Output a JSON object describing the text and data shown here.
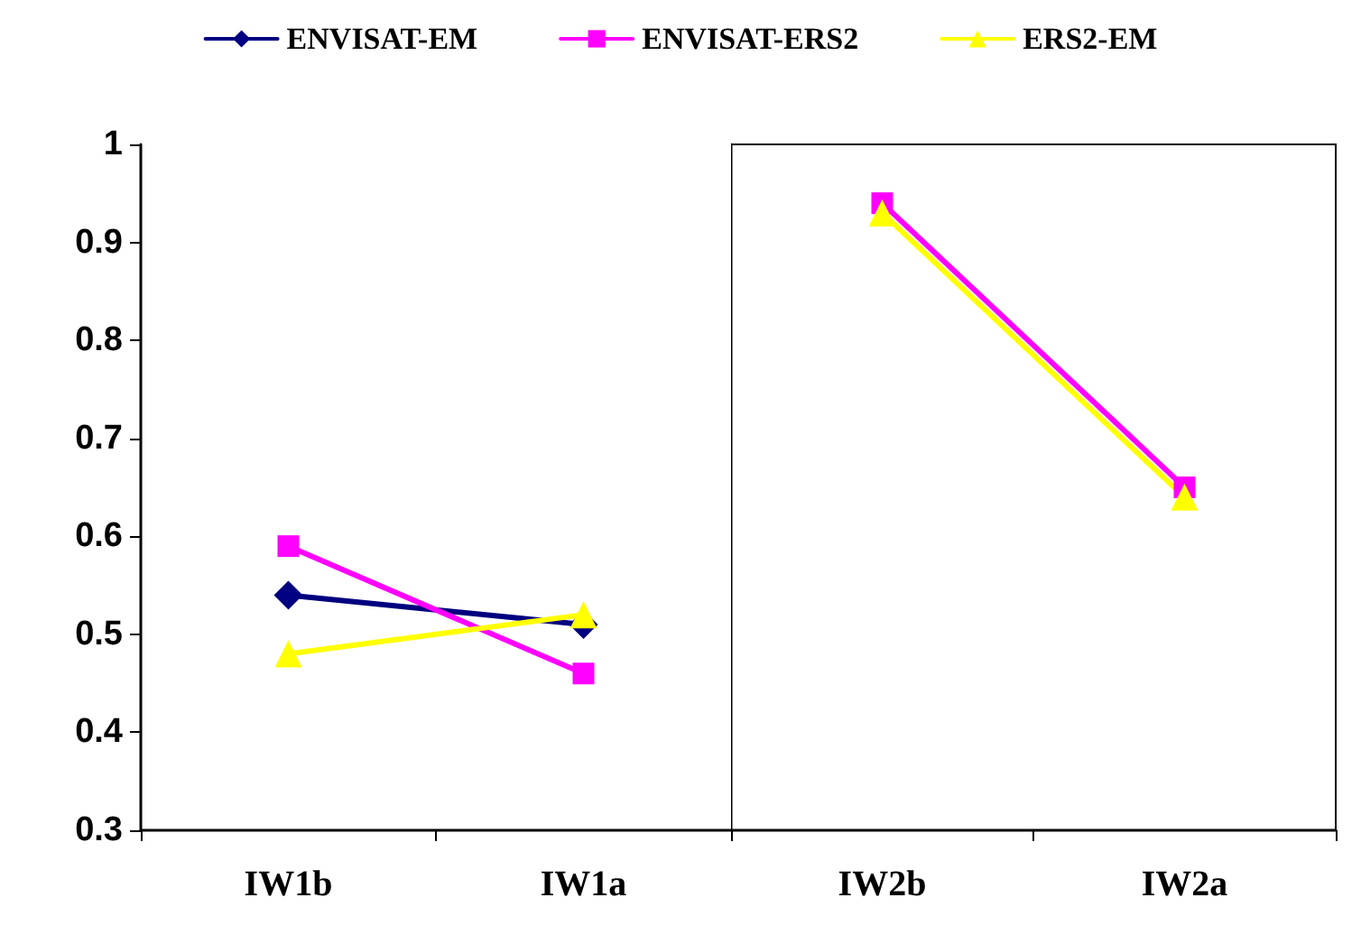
{
  "chart_data": [
    {
      "type": "line",
      "categories": [
        "IW1b",
        "IW1a"
      ],
      "ylim": [
        0.3,
        1
      ],
      "yticks": [
        0.3,
        0.4,
        0.5,
        0.6,
        0.7,
        0.8,
        0.9,
        1
      ],
      "grid": false,
      "legend": "top",
      "series": [
        {
          "name": "ENVISAT-EM",
          "color": "#000080",
          "marker": "diamond",
          "values": [
            0.54,
            0.51
          ]
        },
        {
          "name": "ENVISAT-ERS2",
          "color": "#ff00ff",
          "marker": "square",
          "values": [
            0.59,
            0.46
          ]
        },
        {
          "name": "ERS2-EM",
          "color": "#ffff00",
          "marker": "triangle",
          "values": [
            0.48,
            0.52
          ]
        }
      ]
    },
    {
      "type": "line",
      "categories": [
        "IW2b",
        "IW2a"
      ],
      "ylim": [
        0.3,
        1
      ],
      "yticks": [
        0.3,
        0.4,
        0.5,
        0.6,
        0.7,
        0.8,
        0.9,
        1
      ],
      "grid": false,
      "legend": false,
      "tick_labels": "x",
      "series": [
        {
          "color": "#000080",
          "marker": "diamond",
          "values": [
            null,
            null
          ]
        },
        {
          "color": "#ff00ff",
          "marker": "square",
          "values": [
            0.94,
            0.65
          ]
        },
        {
          "color": "#ffff00",
          "marker": "triangle",
          "values": [
            0.93,
            0.64
          ]
        }
      ]
    }
  ]
}
